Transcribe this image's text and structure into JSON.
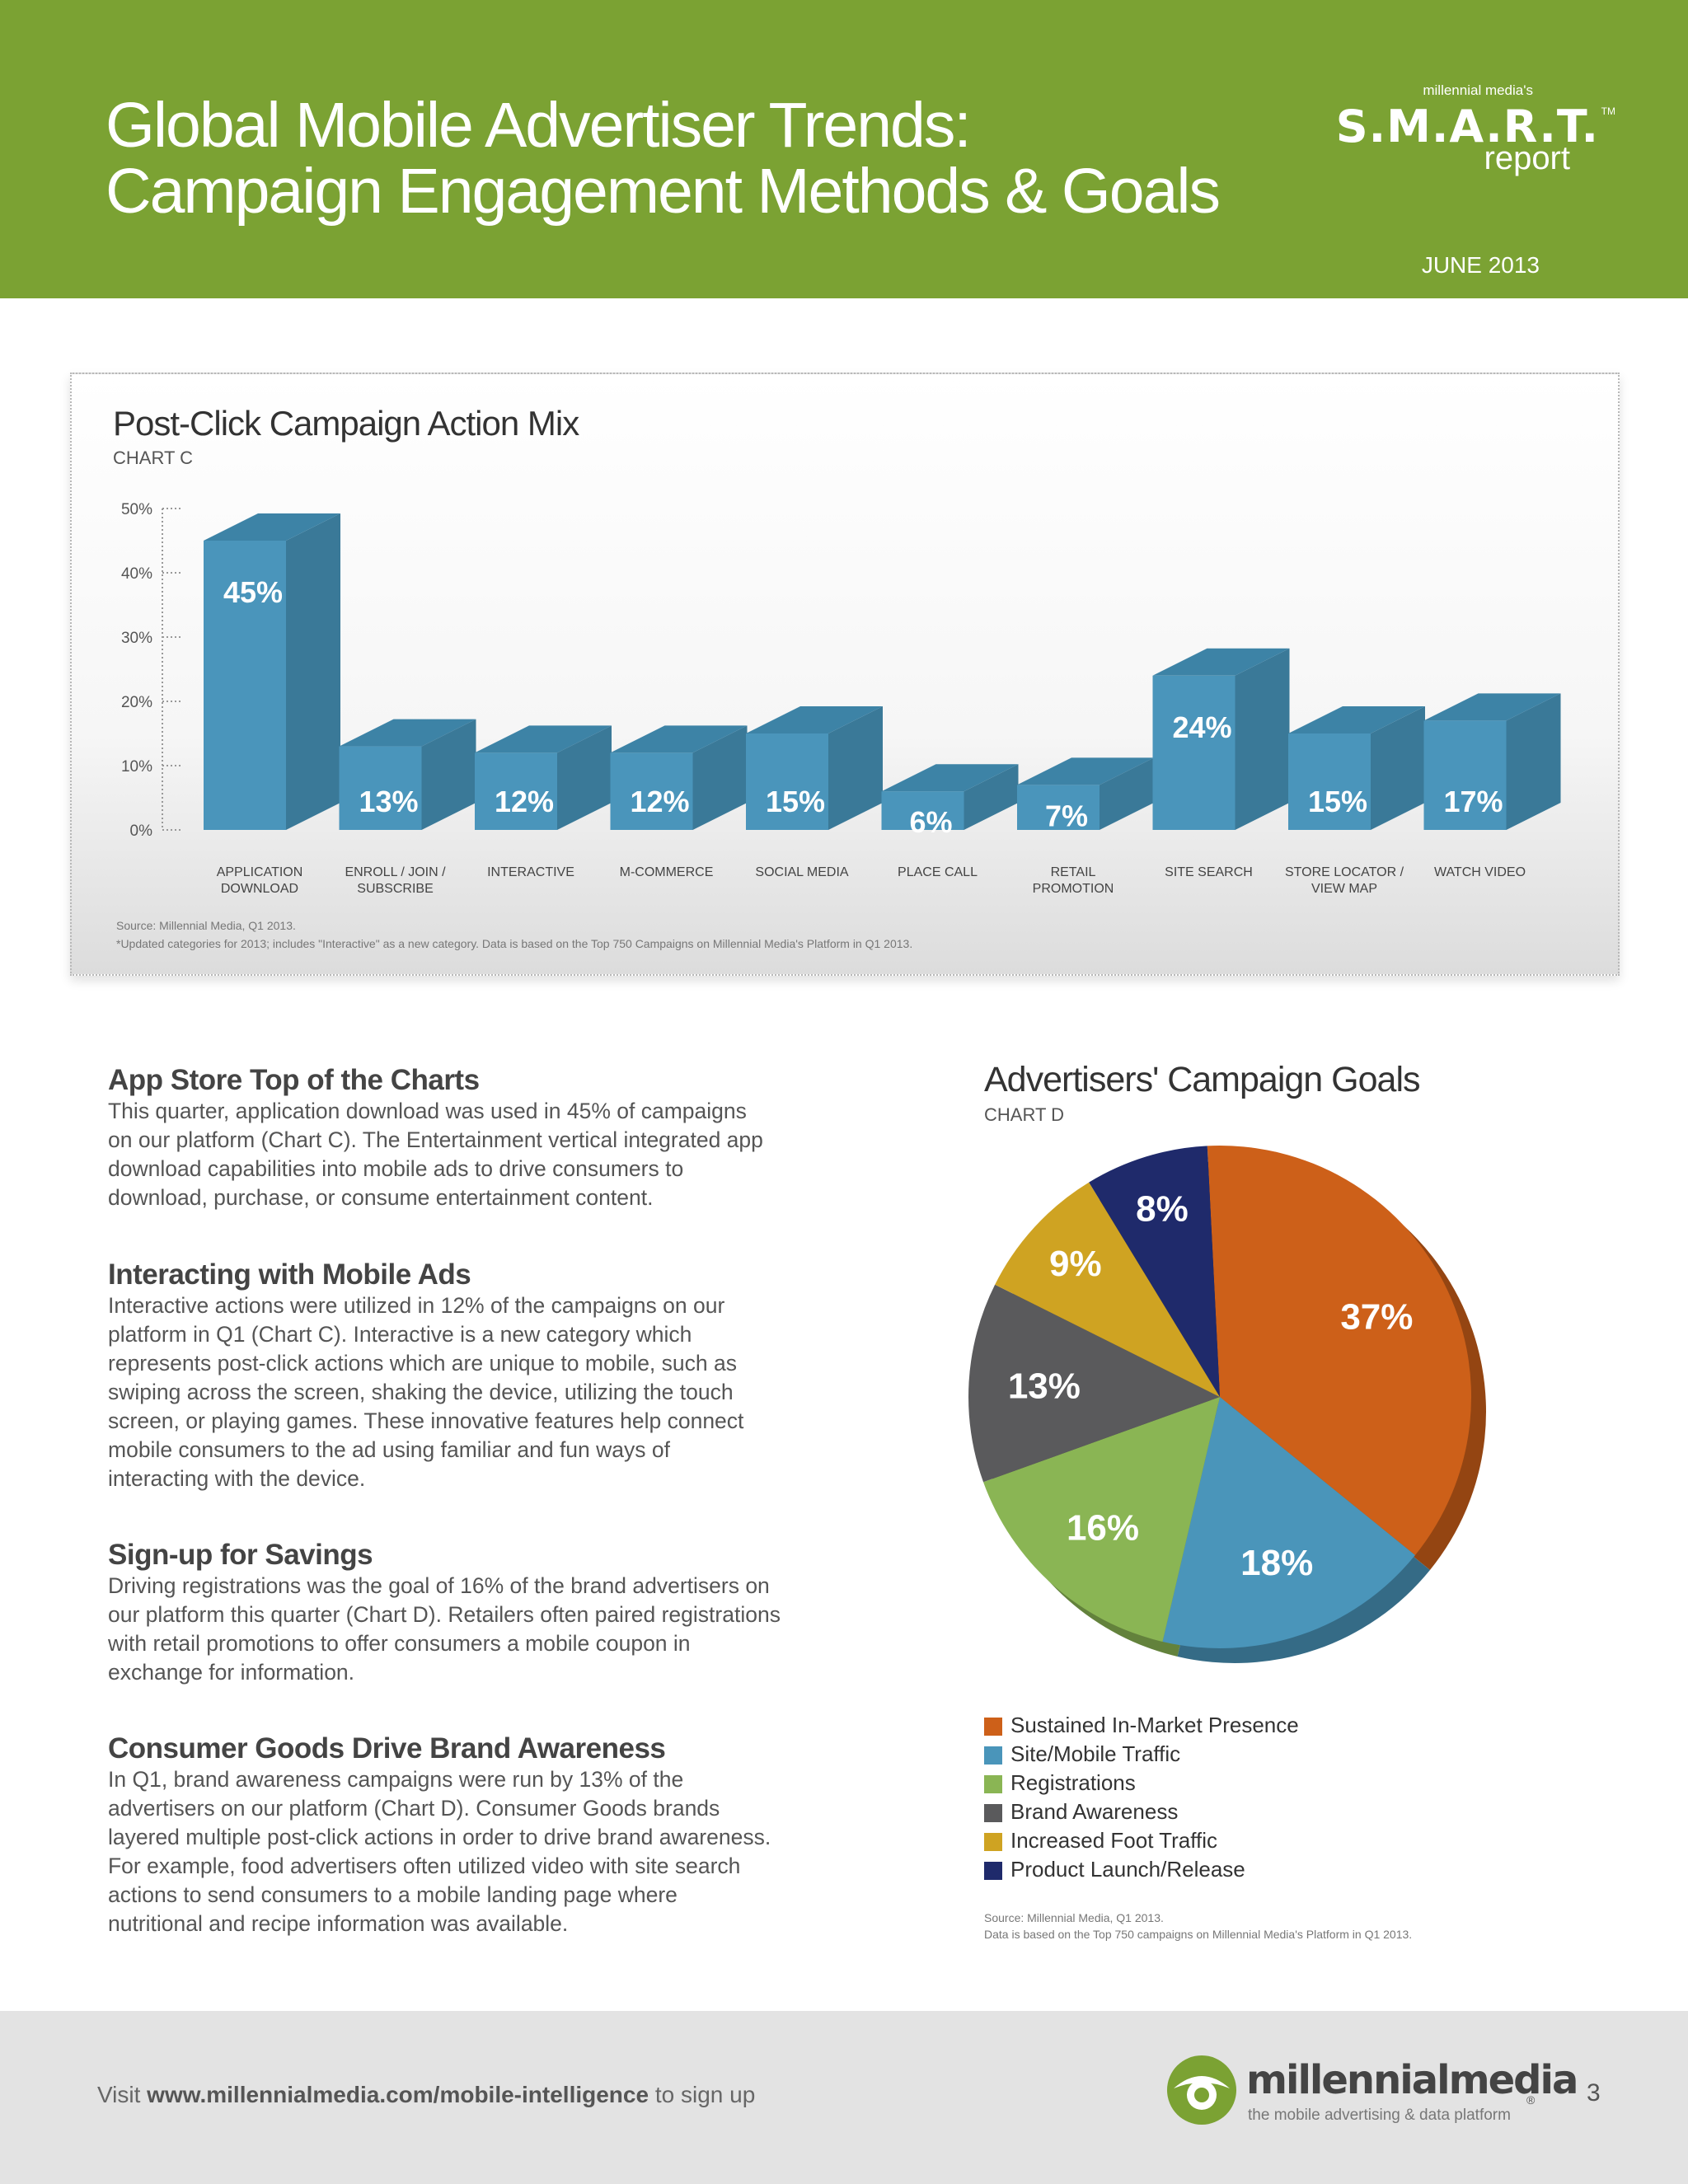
{
  "header": {
    "title_line1": "Global Mobile Advertiser Trends:",
    "title_line2": "Campaign Engagement Methods & Goals",
    "brand_small": "millennial media's",
    "brand_main": "S.M.A.R.T.",
    "brand_tm": "TM",
    "brand_sub": "report",
    "date": "JUNE 2013",
    "bg_color": "#7ba233"
  },
  "chartc_panel": {
    "title": "Post-Click Campaign Action Mix",
    "chart_label": "CHART C",
    "source": "Source: Millennial Media, Q1 2013.",
    "note": "*Updated categories for 2013; includes \"Interactive\" as a new category. Data is based on the Top 750 Campaigns on Millennial Media's Platform in Q1 2013."
  },
  "sections": [
    {
      "heading": "App Store Top of the Charts",
      "lines": [
        "This quarter, application download was used in 45% of campaigns",
        "on our platform (Chart C). The Entertainment vertical integrated app",
        "download capabilities into mobile ads to drive consumers to",
        "download, purchase, or consume entertainment content."
      ]
    },
    {
      "heading": "Interacting with Mobile Ads",
      "lines": [
        "Interactive actions were utilized in 12% of the campaigns on our",
        "platform in Q1 (Chart C). Interactive is a new category which",
        "represents post-click actions which are unique to mobile, such as",
        "swiping across the screen, shaking the device, utilizing the touch",
        "screen, or playing games. These innovative features help connect",
        "mobile consumers to the ad using familiar and fun ways of",
        "interacting with the device."
      ]
    },
    {
      "heading": "Sign-up for Savings",
      "lines": [
        "Driving registrations was the goal of 16% of the brand advertisers on",
        "our platform this quarter (Chart D). Retailers often paired registrations",
        "with retail promotions to offer consumers a mobile coupon in",
        "exchange for information."
      ]
    },
    {
      "heading": "Consumer Goods Drive Brand Awareness",
      "lines": [
        "In Q1, brand awareness campaigns were run by 13% of the",
        "advertisers on our platform (Chart D). Consumer Goods brands",
        "layered multiple post-click actions in order to drive brand awareness.",
        "For example, food advertisers often utilized video with site search",
        "actions to send consumers to a mobile landing page where",
        "nutritional and recipe information was available."
      ]
    }
  ],
  "chartd_panel": {
    "title": "Advertisers' Campaign Goals",
    "chart_label": "CHART D",
    "source": "Source: Millennial Media, Q1 2013.",
    "note": "Data is based on the Top 750 campaigns on Millennial Media's Platform in Q1 2013."
  },
  "chart_data": [
    {
      "type": "bar",
      "title": "Post-Click Campaign Action Mix",
      "categories": [
        [
          "APPLICATION",
          "DOWNLOAD"
        ],
        [
          "ENROLL / JOIN /",
          "SUBSCRIBE"
        ],
        [
          "INTERACTIVE"
        ],
        [
          "M-COMMERCE"
        ],
        [
          "SOCIAL MEDIA"
        ],
        [
          "PLACE CALL"
        ],
        [
          "RETAIL",
          "PROMOTION"
        ],
        [
          "SITE SEARCH"
        ],
        [
          "STORE LOCATOR /",
          "VIEW MAP"
        ],
        [
          "WATCH VIDEO"
        ]
      ],
      "values": [
        45,
        13,
        12,
        12,
        15,
        6,
        7,
        24,
        15,
        17
      ],
      "labels": [
        "45%",
        "13%",
        "12%",
        "12%",
        "15%",
        "6%",
        "7%",
        "24%",
        "15%",
        "17%"
      ],
      "yticks": [
        "0%",
        "10%",
        "20%",
        "30%",
        "40%",
        "50%"
      ],
      "ylim": [
        0,
        50
      ],
      "bar_color": "#4a95bb",
      "bar_side_color": "#3a7998",
      "bar_top_color": "#3d83a6"
    },
    {
      "type": "pie",
      "title": "Advertisers' Campaign Goals",
      "slices": [
        {
          "name": "Sustained In-Market Presence",
          "value": 37,
          "label": "37%",
          "color": "#cd6019"
        },
        {
          "name": "Site/Mobile Traffic",
          "value": 18,
          "label": "18%",
          "color": "#4a95ba"
        },
        {
          "name": "Registrations",
          "value": 16,
          "label": "16%",
          "color": "#8ab554"
        },
        {
          "name": "Brand Awareness",
          "value": 13,
          "label": "13%",
          "color": "#5a5a5c"
        },
        {
          "name": "Increased Foot Traffic",
          "value": 9,
          "label": "9%",
          "color": "#cfa322"
        },
        {
          "name": "Product Launch/Release",
          "value": 8,
          "label": "8%",
          "color": "#1f2a6b"
        }
      ]
    }
  ],
  "footer": {
    "cta_prefix": "Visit ",
    "cta_link": "www.millennialmedia.com/mobile-intelligence",
    "cta_suffix": " to sign up",
    "logo_name": "millennialmedia",
    "logo_reg": "®",
    "logo_tag": "the mobile advertising & data platform",
    "page_number": "3"
  }
}
